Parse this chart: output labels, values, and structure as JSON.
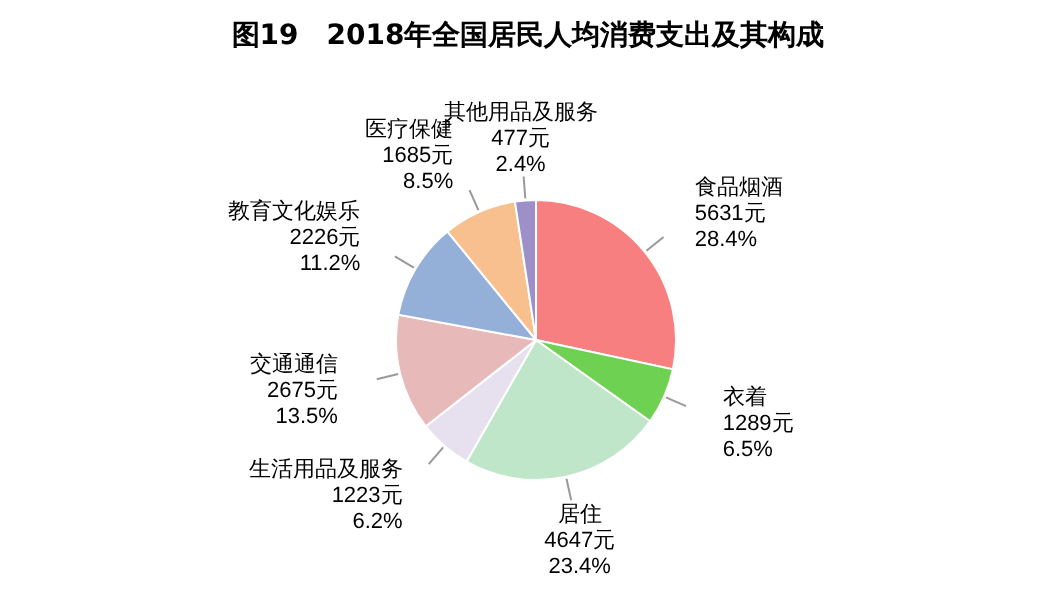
{
  "chart_data": {
    "type": "pie",
    "title": "图19　2018年全国居民人均消费支出及其构成",
    "categories": [
      "食品烟酒",
      "衣着",
      "居住",
      "生活用品及服务",
      "交通通信",
      "教育文化娱乐",
      "医疗保健",
      "其他用品及服务"
    ],
    "values": [
      5631,
      1289,
      4647,
      1223,
      2675,
      2226,
      1685,
      477
    ],
    "value_labels": [
      "5631元\n28.4%",
      "1289元\n6.5%",
      "4647元\n23.4%",
      "1223元\n6.2%",
      "2675元\n13.5%",
      "2226元\n11.2%",
      "1685元\n8.5%",
      "477元\n2.4%"
    ],
    "colors": [
      "#f77f7f",
      "#6fd152",
      "#bfe6c9",
      "#e6e0ef",
      "#e8b9b9",
      "#94b0d9",
      "#f8c08f",
      "#9d90c9"
    ]
  }
}
